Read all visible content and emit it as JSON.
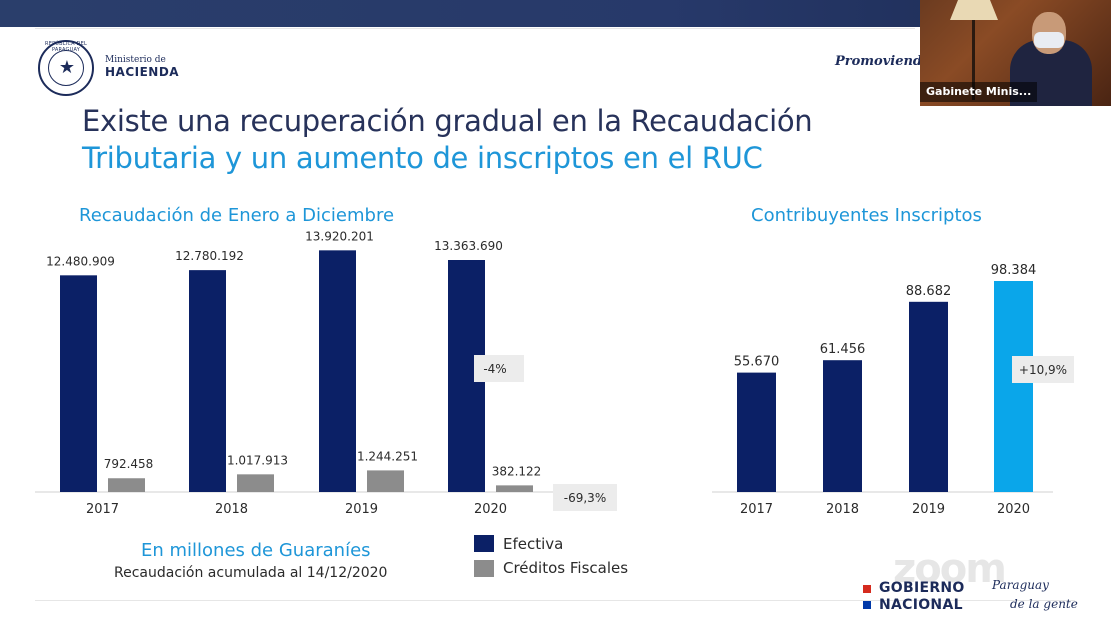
{
  "header": {
    "ministry_line1": "Ministerio de",
    "ministry_line2": "HACIENDA",
    "seal_text": "REPÚBLICA DEL PARAGUAY",
    "promo_text": "Promoviendo"
  },
  "video": {
    "participant_name": "Gabinete Minis..."
  },
  "title": {
    "line1": "Existe una recuperación gradual en la Recaudación",
    "line2": "Tributaria y un aumento de inscriptos en el RUC"
  },
  "colors": {
    "navy": "#0b2066",
    "gray": "#8c8c8c",
    "light_blue": "#0aa6ea",
    "accent_text": "#1e96d8"
  },
  "chart_data": [
    {
      "type": "bar",
      "title": "Recaudación de Enero a Diciembre",
      "categories": [
        "2017",
        "2018",
        "2019",
        "2020"
      ],
      "series": [
        {
          "name": "Efectiva",
          "values": [
            12480909,
            12780192,
            13920201,
            13363690
          ],
          "labels": [
            "12.480.909",
            "12.780.192",
            "13.920.201",
            "13.363.690"
          ],
          "color": "#0b2066"
        },
        {
          "name": "Créditos Fiscales",
          "values": [
            792458,
            1017913,
            1244251,
            382122
          ],
          "labels": [
            "792.458",
            "1.017.913",
            "1.244.251",
            "382.122"
          ],
          "color": "#8c8c8c"
        }
      ],
      "annotations": [
        "-4%",
        "-69,3%"
      ]
    },
    {
      "type": "bar",
      "title": "Contribuyentes Inscriptos",
      "categories": [
        "2017",
        "2018",
        "2019",
        "2020"
      ],
      "values": [
        55670,
        61456,
        88682,
        98384
      ],
      "labels": [
        "55.670",
        "61.456",
        "88.682",
        "98.384"
      ],
      "bar_colors": [
        "#0b2066",
        "#0b2066",
        "#0b2066",
        "#0aa6ea"
      ],
      "annotations": [
        "+10,9%"
      ]
    }
  ],
  "notes": {
    "units": "En millones de Guaraníes",
    "cutoff": "Recaudación acumulada al 14/12/2020"
  },
  "legend": [
    "Efectiva",
    "Créditos Fiscales"
  ],
  "footer": {
    "zoom_watermark": "zoom",
    "gov_line1": "GOBIERNO",
    "gov_line2": "NACIONAL",
    "slogan_line1": "Paraguay",
    "slogan_line2": "de la gente"
  }
}
